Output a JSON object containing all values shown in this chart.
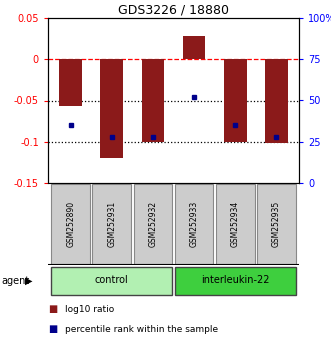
{
  "title": "GDS3226 / 18880",
  "samples": [
    "GSM252890",
    "GSM252931",
    "GSM252932",
    "GSM252933",
    "GSM252934",
    "GSM252935"
  ],
  "log10_ratio": [
    -0.057,
    -0.12,
    -0.1,
    0.028,
    -0.1,
    -0.102
  ],
  "percentile_rank": [
    35,
    28,
    28,
    52,
    35,
    28
  ],
  "bar_color": "#8B1A1A",
  "dot_color": "#00008B",
  "ylim_left": [
    -0.15,
    0.05
  ],
  "ylim_right": [
    0,
    100
  ],
  "yticks_left": [
    0.05,
    0.0,
    -0.05,
    -0.1,
    -0.15
  ],
  "yticks_right": [
    100,
    75,
    50,
    25,
    0
  ],
  "ytick_labels_left": [
    "0.05",
    "0",
    "-0.05",
    "-0.1",
    "-0.15"
  ],
  "ytick_labels_right": [
    "100%",
    "75",
    "50",
    "25",
    "0"
  ],
  "hlines": [
    0.0,
    -0.05,
    -0.1
  ],
  "hline_styles": [
    "dashed",
    "dotted",
    "dotted"
  ],
  "groups": [
    {
      "label": "control",
      "indices": [
        0,
        1,
        2
      ],
      "color": "#b2f0b2"
    },
    {
      "label": "interleukin-22",
      "indices": [
        3,
        4,
        5
      ],
      "color": "#3ecf3e"
    }
  ],
  "agent_label": "agent",
  "legend_items": [
    {
      "color": "#8B1A1A",
      "label": "log10 ratio"
    },
    {
      "color": "#00008B",
      "label": "percentile rank within the sample"
    }
  ],
  "bar_width": 0.55
}
